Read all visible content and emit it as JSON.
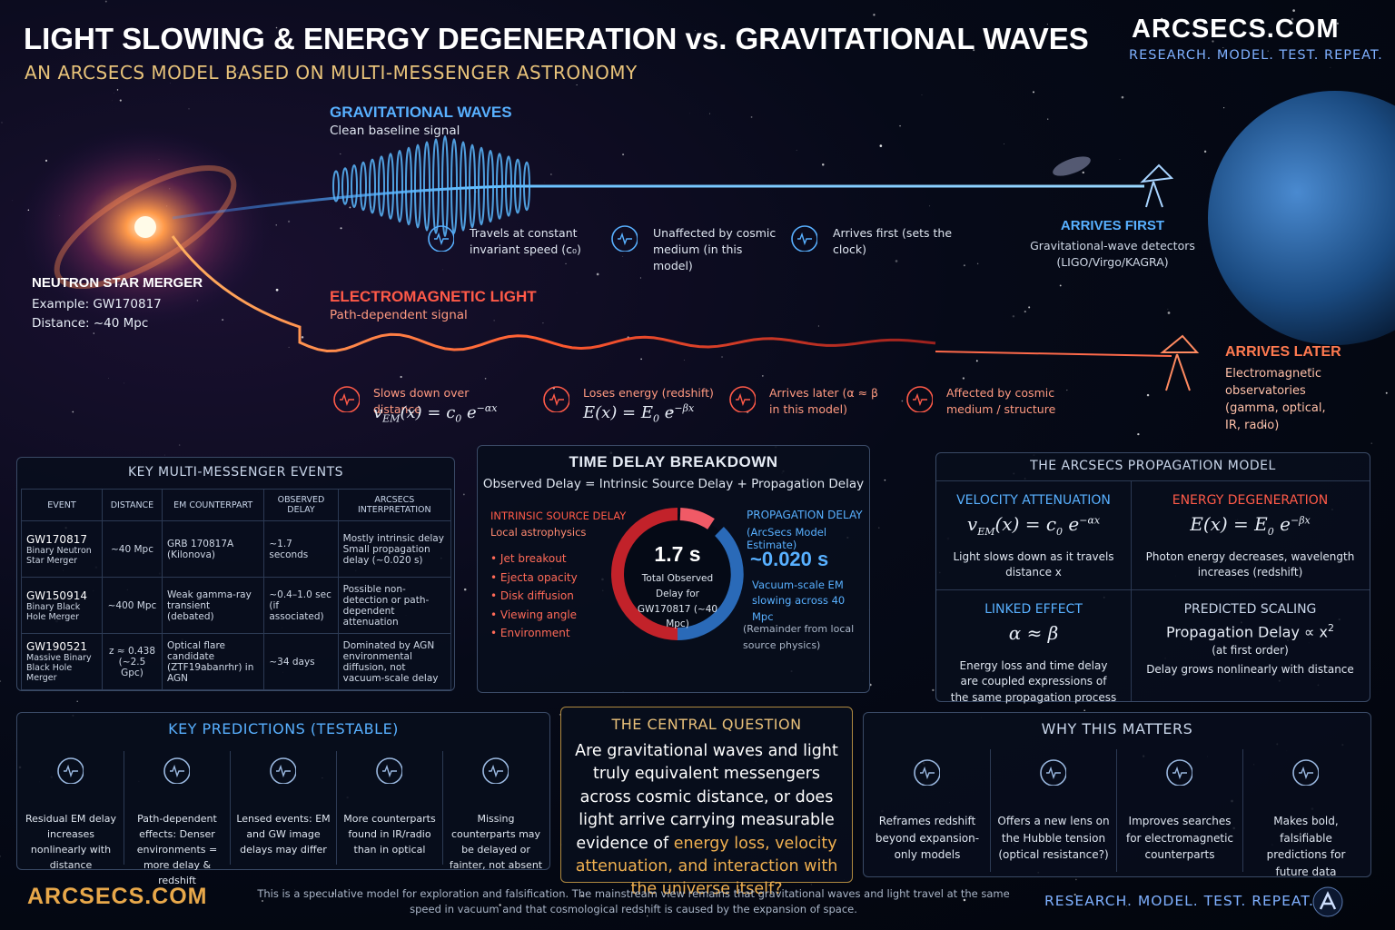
{
  "header": {
    "title": "LIGHT SLOWING & ENERGY DEGENERATION vs. GRAVITATIONAL WAVES",
    "subtitle": "AN ARCSECS MODEL BASED ON MULTI-MESSENGER ASTRONOMY",
    "brand": "ARCSECS.COM",
    "tagline": "RESEARCH. MODEL. TEST. REPEAT."
  },
  "source": {
    "title": "NEUTRON STAR MERGER",
    "lines": [
      "Example: GW170817",
      "Distance: ~40 Mpc"
    ]
  },
  "gw": {
    "title": "GRAVITATIONAL WAVES",
    "subtitle": "Clean baseline signal",
    "features": [
      "Travels at constant invariant speed (c₀)",
      "Unaffected by cosmic medium (in this model)",
      "Arrives first (sets the clock)"
    ]
  },
  "arrival_gw": {
    "title": "ARRIVES FIRST",
    "text": "Gravitational-wave detectors (LIGO/Virgo/KAGRA)"
  },
  "em": {
    "title": "ELECTROMAGNETIC LIGHT",
    "subtitle": "Path-dependent signal",
    "features": [
      {
        "text": "Slows down over distance",
        "formula": [
          {
            "t": "v"
          },
          {
            "t": "EM",
            "pos": "sub"
          },
          {
            "t": "(x) = c"
          },
          {
            "t": "0",
            "pos": "sub"
          },
          {
            "t": " e"
          },
          {
            "t": "−αx",
            "pos": "sup"
          }
        ]
      },
      {
        "text": "Loses energy (redshift)",
        "formula": [
          {
            "t": "E(x) = E"
          },
          {
            "t": "0",
            "pos": "sub"
          },
          {
            "t": " e"
          },
          {
            "t": "−βx",
            "pos": "sup"
          }
        ]
      },
      {
        "text": "Arrives later (α ≈ β in this model)"
      },
      {
        "text": "Affected by cosmic medium / structure"
      }
    ]
  },
  "arrival_em": {
    "title": "ARRIVES LATER",
    "text": "Electromagnetic observatories (gamma, optical, IR, radio)"
  },
  "events_table": {
    "title": "KEY MULTI-MESSENGER EVENTS",
    "columns": [
      "EVENT",
      "DISTANCE",
      "EM COUNTERPART",
      "OBSERVED DELAY",
      "ARCSECS INTERPRETATION"
    ],
    "rows": [
      [
        {
          "name": "GW170817",
          "kind": "Binary Neutron Star Merger"
        },
        "~40 Mpc",
        "GRB 170817A (Kilonova)",
        "~1.7 seconds",
        "Mostly intrinsic delay Small propagation delay (~0.020 s)"
      ],
      [
        {
          "name": "GW150914",
          "kind": "Binary Black Hole Merger"
        },
        "~400 Mpc",
        "Weak gamma-ray transient (debated)",
        "~0.4–1.0 sec (if associated)",
        "Possible non-detection or path-dependent attenuation"
      ],
      [
        {
          "name": "GW190521",
          "kind": "Massive Binary Black Hole Merger"
        },
        "z ≈ 0.438 (~2.5 Gpc)",
        "Optical flare candidate (ZTF19abanrhr) in AGN",
        "~34 days",
        "Dominated by AGN environmental diffusion, not vacuum-scale delay"
      ]
    ]
  },
  "time_delay": {
    "title": "TIME DELAY BREAKDOWN",
    "equation": "Observed Delay = Intrinsic Source Delay + Propagation Delay",
    "intrinsic": {
      "title": "INTRINSIC SOURCE DELAY",
      "subtitle": "Local astrophysics",
      "items": [
        "Jet breakout",
        "Ejecta opacity",
        "Disk diffusion",
        "Viewing angle",
        "Environment"
      ]
    },
    "center": {
      "value": "1.7 s",
      "label": "Total Observed Delay for GW170817 (~40 Mpc)"
    },
    "propagation": {
      "title": "PROPAGATION DELAY",
      "subtitle": "(ArcSecs Model Estimate)",
      "value": "~0.020 s",
      "text": "Vacuum-scale EM slowing across 40 Mpc",
      "note": "(Remainder from local source physics)"
    }
  },
  "model": {
    "title": "THE ARCSECS PROPAGATION MODEL",
    "cells": [
      {
        "title": "VELOCITY ATTENUATION",
        "formula": [
          {
            "t": "v"
          },
          {
            "t": "EM",
            "pos": "sub"
          },
          {
            "t": "(x) = c"
          },
          {
            "t": "0",
            "pos": "sub"
          },
          {
            "t": " e"
          },
          {
            "t": "−αx",
            "pos": "sup"
          }
        ],
        "text": "Light slows down as it travels distance x"
      },
      {
        "title": "ENERGY DEGENERATION",
        "formula": [
          {
            "t": "E(x) = E"
          },
          {
            "t": "0",
            "pos": "sub"
          },
          {
            "t": " e"
          },
          {
            "t": "−βx",
            "pos": "sup"
          }
        ],
        "text": "Photon energy decreases, wavelength increases (redshift)"
      },
      {
        "title": "LINKED EFFECT",
        "formula": [
          {
            "t": "α ≈ β"
          }
        ],
        "text": "Energy loss and time delay are coupled expressions of the same propagation process"
      },
      {
        "title": "PREDICTED SCALING",
        "formula": [
          {
            "t": "Propagation Delay ∝ x"
          },
          {
            "t": "2",
            "pos": "sup"
          }
        ],
        "note": "(at first order)",
        "text": "Delay grows nonlinearly with distance"
      }
    ]
  },
  "predictions": {
    "title": "KEY PREDICTIONS (TESTABLE)",
    "items": [
      "Residual EM delay increases nonlinearly with distance",
      "Path-dependent effects: Denser environments = more delay & redshift",
      "Lensed events: EM and GW image delays may differ",
      "More counterparts found in IR/radio than in optical",
      "Missing counterparts may be delayed or fainter, not absent"
    ]
  },
  "question": {
    "title": "THE CENTRAL QUESTION",
    "text": "Are gravitational waves and light truly equivalent messengers across cosmic distance, or does light arrive carrying measurable evidence of",
    "highlight": "energy loss, velocity attenuation, and interaction with the universe itself?"
  },
  "why": {
    "title": "WHY THIS MATTERS",
    "items": [
      "Reframes redshift beyond expansion-only models",
      "Offers a new lens on the Hubble tension (optical resistance?)",
      "Improves searches for electromagnetic counterparts",
      "Makes bold, falsifiable predictions for future data"
    ]
  },
  "footer": {
    "brand": "ARCSECS.COM",
    "disclaimer": "This is a speculative model for exploration and falsification. The mainstream view remains that gravitational waves and light travel at the same speed in vacuum and that cosmological redshift is caused by the expansion of space.",
    "tagline": "RESEARCH. MODEL. TEST. REPEAT."
  }
}
